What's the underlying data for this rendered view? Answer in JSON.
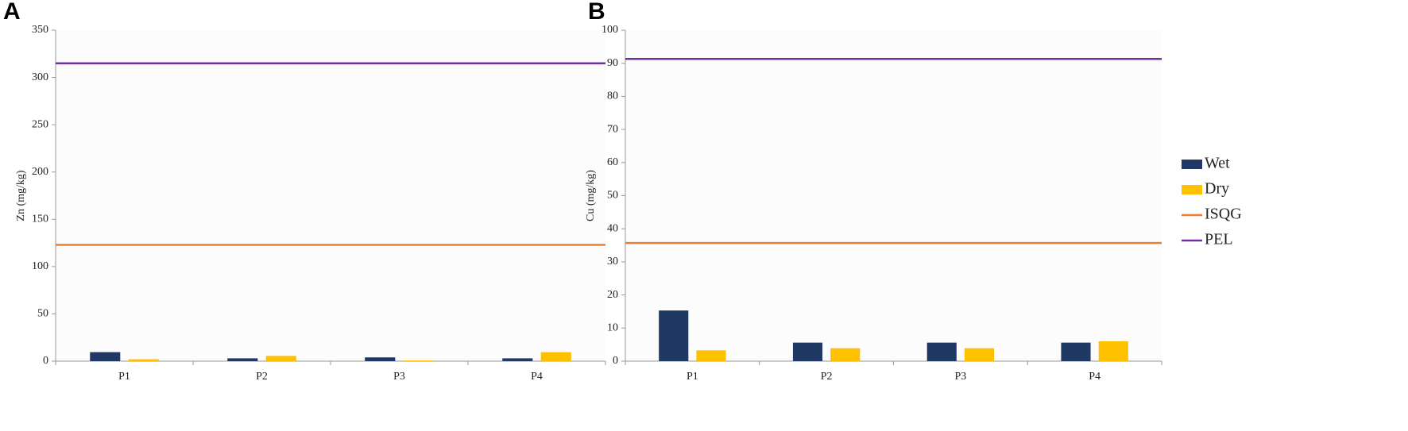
{
  "chart_data": [
    {
      "type": "bar",
      "panel_label": "A",
      "y_label": "Zn (mg/kg)",
      "categories": [
        "P1",
        "P2",
        "P3",
        "P4"
      ],
      "series": [
        {
          "name": "Wet",
          "color": "#1f3864",
          "values": [
            9.5,
            3,
            4,
            3
          ]
        },
        {
          "name": "Dry",
          "color": "#ffc000",
          "values": [
            2,
            5.5,
            0.7,
            9.5
          ]
        }
      ],
      "reference_lines": [
        {
          "name": "ISQG",
          "color": "#ed7d31",
          "value": 123
        },
        {
          "name": "PEL",
          "color": "#7030a0",
          "value": 315
        }
      ],
      "ylim": [
        0,
        350
      ],
      "yticks": [
        0,
        50,
        100,
        150,
        200,
        250,
        300,
        350
      ],
      "legend": false
    },
    {
      "type": "bar",
      "panel_label": "B",
      "y_label": "Cu (mg/kg)",
      "categories": [
        "P1",
        "P2",
        "P3",
        "P4"
      ],
      "series": [
        {
          "name": "Wet",
          "color": "#1f3864",
          "values": [
            15.3,
            5.6,
            5.6,
            5.6
          ]
        },
        {
          "name": "Dry",
          "color": "#ffc000",
          "values": [
            3.3,
            3.9,
            3.9,
            6.0
          ]
        }
      ],
      "reference_lines": [
        {
          "name": "ISQG",
          "color": "#ed7d31",
          "value": 35.7
        },
        {
          "name": "PEL",
          "color": "#7030a0",
          "value": 91.3
        }
      ],
      "ylim": [
        0,
        100
      ],
      "yticks": [
        0,
        10,
        20,
        30,
        40,
        50,
        60,
        70,
        80,
        90,
        100
      ],
      "legend": "right"
    }
  ]
}
